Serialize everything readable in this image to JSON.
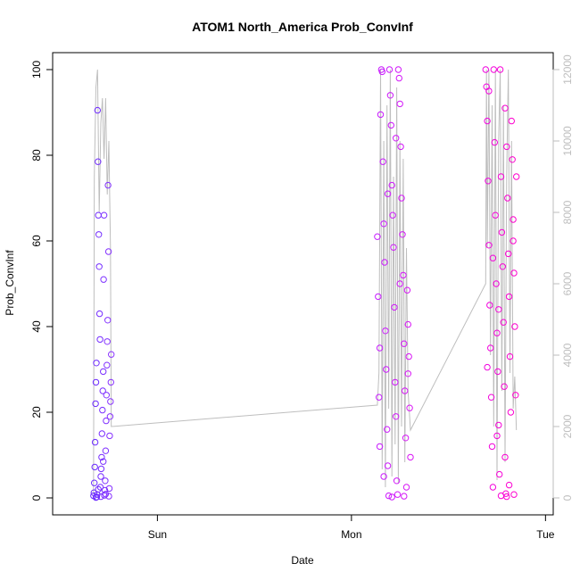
{
  "chart_data": {
    "type": "scatter",
    "title": "ATOM1 North_America Prob_ConvInf",
    "xlabel": "Date",
    "ylabel": "Prob_ConvInf",
    "ylim": [
      0,
      100
    ],
    "yticks": [
      0,
      20,
      40,
      60,
      80,
      100
    ],
    "y2lim": [
      0,
      12000
    ],
    "y2ticks": [
      0,
      2000,
      4000,
      6000,
      8000,
      10000,
      12000
    ],
    "xlim_hours": [
      -12,
      48
    ],
    "xticks": [
      {
        "label": "Sun",
        "hour": 0
      },
      {
        "label": "Mon",
        "hour": 24
      },
      {
        "label": "Tue",
        "hour": 48
      }
    ],
    "grid": false,
    "legend": "none",
    "colors": {
      "start": "#6a2bff",
      "end": "#ff00cc",
      "line": "#bebebe"
    },
    "clusters": [
      {
        "name": "cluster-1",
        "hour_range": [
          -7.9,
          -5.7
        ],
        "color_from": "#6a2bff",
        "color_to": "#8a33ff",
        "points": [
          [
            -7.9,
            0.5
          ],
          [
            -7.85,
            1.2
          ],
          [
            -7.8,
            3.5
          ],
          [
            -7.75,
            7.2
          ],
          [
            -7.7,
            13.0
          ],
          [
            -7.65,
            22.0
          ],
          [
            -7.6,
            27.0
          ],
          [
            -7.55,
            31.5
          ],
          [
            -7.5,
            0.2
          ],
          [
            -7.45,
            0.8
          ],
          [
            -7.4,
            90.5
          ],
          [
            -7.35,
            78.5
          ],
          [
            -7.3,
            66.0
          ],
          [
            -7.25,
            61.5
          ],
          [
            -7.2,
            54.0
          ],
          [
            -7.15,
            43.0
          ],
          [
            -7.1,
            37.0
          ],
          [
            -7.05,
            2.5
          ],
          [
            -7.0,
            0.3
          ],
          [
            -6.95,
            6.8
          ],
          [
            -6.9,
            9.5
          ],
          [
            -6.85,
            15.0
          ],
          [
            -6.8,
            20.5
          ],
          [
            -6.75,
            25.0
          ],
          [
            -6.7,
            29.5
          ],
          [
            -6.65,
            51.0
          ],
          [
            -6.6,
            66.0
          ],
          [
            -6.55,
            0.6
          ],
          [
            -6.5,
            1.8
          ],
          [
            -6.45,
            4.0
          ],
          [
            -6.4,
            11.0
          ],
          [
            -6.35,
            18.0
          ],
          [
            -6.3,
            24.0
          ],
          [
            -6.25,
            31.0
          ],
          [
            -6.2,
            36.5
          ],
          [
            -6.15,
            41.5
          ],
          [
            -6.1,
            73.0
          ],
          [
            -6.05,
            57.5
          ],
          [
            -6.0,
            0.4
          ],
          [
            -5.95,
            2.2
          ],
          [
            -5.9,
            14.5
          ],
          [
            -5.85,
            19.0
          ],
          [
            -5.8,
            22.5
          ],
          [
            -5.75,
            27.0
          ],
          [
            -5.7,
            33.5
          ],
          [
            -7.6,
            0.1
          ],
          [
            -7.3,
            2.0
          ],
          [
            -7.0,
            5.0
          ],
          [
            -6.7,
            8.5
          ],
          [
            -6.4,
            0.9
          ]
        ]
      },
      {
        "name": "cluster-2",
        "hour_range": [
          27.2,
          31.3
        ],
        "color_from": "#c61bff",
        "color_to": "#d916f5",
        "points": [
          [
            27.2,
            61.0
          ],
          [
            27.3,
            47.0
          ],
          [
            27.4,
            23.5
          ],
          [
            27.5,
            12.0
          ],
          [
            27.6,
            89.5
          ],
          [
            27.7,
            100.0
          ],
          [
            27.8,
            99.5
          ],
          [
            27.9,
            78.5
          ],
          [
            28.0,
            64.0
          ],
          [
            28.1,
            55.0
          ],
          [
            28.2,
            39.0
          ],
          [
            28.3,
            30.0
          ],
          [
            28.4,
            16.0
          ],
          [
            28.5,
            7.5
          ],
          [
            28.6,
            0.5
          ],
          [
            28.7,
            100.0
          ],
          [
            28.8,
            94.0
          ],
          [
            28.9,
            87.0
          ],
          [
            29.0,
            73.0
          ],
          [
            29.1,
            66.0
          ],
          [
            29.2,
            58.5
          ],
          [
            29.3,
            44.5
          ],
          [
            29.4,
            27.0
          ],
          [
            29.5,
            19.0
          ],
          [
            29.6,
            4.0
          ],
          [
            29.7,
            0.8
          ],
          [
            29.8,
            100.0
          ],
          [
            29.9,
            98.0
          ],
          [
            30.0,
            92.0
          ],
          [
            30.1,
            82.0
          ],
          [
            30.2,
            70.0
          ],
          [
            30.3,
            61.5
          ],
          [
            30.4,
            52.0
          ],
          [
            30.5,
            36.0
          ],
          [
            30.6,
            25.0
          ],
          [
            30.7,
            14.0
          ],
          [
            30.8,
            2.5
          ],
          [
            30.9,
            48.5
          ],
          [
            31.0,
            40.5
          ],
          [
            31.1,
            33.0
          ],
          [
            31.2,
            21.0
          ],
          [
            31.3,
            9.5
          ],
          [
            27.5,
            35.0
          ],
          [
            28.0,
            5.0
          ],
          [
            28.5,
            71.0
          ],
          [
            29.0,
            0.2
          ],
          [
            29.5,
            84.0
          ],
          [
            30.0,
            50.0
          ],
          [
            30.5,
            0.4
          ],
          [
            31.0,
            29.0
          ]
        ]
      },
      {
        "name": "cluster-3",
        "hour_range": [
          40.6,
          44.4
        ],
        "color_from": "#f005e0",
        "color_to": "#ff00cc",
        "points": [
          [
            40.6,
            100.0
          ],
          [
            40.7,
            96.0
          ],
          [
            40.8,
            88.0
          ],
          [
            40.9,
            74.0
          ],
          [
            41.0,
            59.0
          ],
          [
            41.1,
            45.0
          ],
          [
            41.2,
            35.0
          ],
          [
            41.3,
            23.5
          ],
          [
            41.4,
            12.0
          ],
          [
            41.5,
            2.5
          ],
          [
            41.6,
            100.0
          ],
          [
            41.7,
            83.0
          ],
          [
            41.8,
            66.0
          ],
          [
            41.9,
            50.0
          ],
          [
            42.0,
            38.5
          ],
          [
            42.1,
            29.5
          ],
          [
            42.2,
            17.0
          ],
          [
            42.3,
            5.5
          ],
          [
            42.4,
            100.0
          ],
          [
            42.5,
            75.0
          ],
          [
            42.6,
            62.0
          ],
          [
            42.7,
            54.0
          ],
          [
            42.8,
            41.0
          ],
          [
            42.9,
            26.0
          ],
          [
            43.0,
            9.5
          ],
          [
            43.1,
            1.0
          ],
          [
            43.2,
            0.3
          ],
          [
            43.3,
            70.0
          ],
          [
            43.4,
            57.0
          ],
          [
            43.5,
            47.0
          ],
          [
            43.6,
            33.0
          ],
          [
            43.7,
            20.0
          ],
          [
            43.8,
            88.0
          ],
          [
            43.9,
            79.0
          ],
          [
            44.0,
            65.0
          ],
          [
            44.1,
            52.5
          ],
          [
            44.2,
            40.0
          ],
          [
            44.3,
            24.0
          ],
          [
            44.4,
            75.0
          ],
          [
            41.0,
            95.0
          ],
          [
            41.5,
            56.0
          ],
          [
            42.0,
            14.5
          ],
          [
            42.5,
            0.5
          ],
          [
            43.0,
            91.0
          ],
          [
            43.5,
            3.0
          ],
          [
            44.0,
            60.0
          ],
          [
            40.8,
            30.5
          ],
          [
            42.2,
            44.0
          ],
          [
            43.2,
            82.0
          ],
          [
            44.1,
            0.8
          ]
        ]
      }
    ],
    "line_series": {
      "name": "",
      "axis": "right",
      "points": [
        [
          -7.9,
          100
        ],
        [
          -7.8,
          9000
        ],
        [
          -7.6,
          11500
        ],
        [
          -7.4,
          12000
        ],
        [
          -7.2,
          8000
        ],
        [
          -7.0,
          10500
        ],
        [
          -6.8,
          11200
        ],
        [
          -6.6,
          9500
        ],
        [
          -6.4,
          11200
        ],
        [
          -6.2,
          8500
        ],
        [
          -6.0,
          10000
        ],
        [
          -5.8,
          7000
        ],
        [
          -5.7,
          2000
        ],
        [
          27.2,
          2600
        ],
        [
          27.4,
          3500
        ],
        [
          27.6,
          12000
        ],
        [
          27.8,
          800
        ],
        [
          28.0,
          10000
        ],
        [
          28.2,
          300
        ],
        [
          28.4,
          11000
        ],
        [
          28.6,
          2500
        ],
        [
          28.8,
          12000
        ],
        [
          29.0,
          600
        ],
        [
          29.2,
          9000
        ],
        [
          29.4,
          1500
        ],
        [
          29.6,
          11500
        ],
        [
          29.8,
          400
        ],
        [
          30.0,
          10000
        ],
        [
          30.2,
          2000
        ],
        [
          30.4,
          9500
        ],
        [
          30.6,
          1000
        ],
        [
          30.8,
          7000
        ],
        [
          31.0,
          3000
        ],
        [
          31.3,
          1900
        ],
        [
          40.6,
          6000
        ],
        [
          40.7,
          12000
        ],
        [
          40.8,
          7000
        ],
        [
          41.0,
          12000
        ],
        [
          41.2,
          4000
        ],
        [
          41.4,
          11000
        ],
        [
          41.6,
          2000
        ],
        [
          41.8,
          12000
        ],
        [
          42.0,
          500
        ],
        [
          42.2,
          10000
        ],
        [
          42.4,
          12000
        ],
        [
          42.6,
          3000
        ],
        [
          42.8,
          11000
        ],
        [
          43.0,
          1000
        ],
        [
          43.2,
          9000
        ],
        [
          43.4,
          12000
        ],
        [
          43.6,
          3500
        ],
        [
          43.8,
          10000
        ],
        [
          44.0,
          2500
        ],
        [
          44.2,
          3400
        ],
        [
          44.4,
          1900
        ]
      ]
    }
  }
}
